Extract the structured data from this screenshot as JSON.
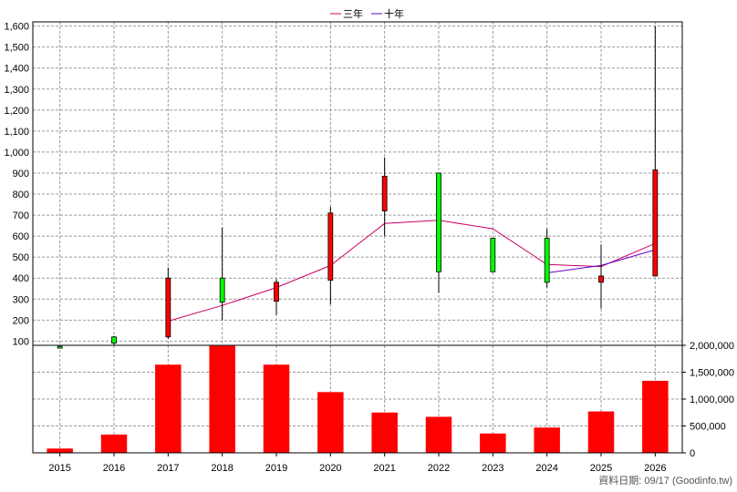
{
  "chart_data": [
    {
      "type": "candlestick",
      "legend": {
        "placement": "top-center",
        "items": [
          {
            "label": "三年",
            "color": "#cc0066"
          },
          {
            "label": "十年",
            "color": "#6600cc"
          }
        ]
      },
      "grid": true,
      "ylim": [
        80,
        1620
      ],
      "y_ticks": [
        "100",
        "200",
        "300",
        "400",
        "500",
        "600",
        "700",
        "800",
        "900",
        "1,000",
        "1,100",
        "1,200",
        "1,300",
        "1,400",
        "1,500",
        "1,600"
      ],
      "categories": [
        "2015",
        "2016",
        "2017",
        "2018",
        "2019",
        "2020",
        "2021",
        "2022",
        "2023",
        "2024",
        "2025",
        "2026"
      ],
      "candles": [
        {
          "open": 75,
          "close": 70,
          "high": 77,
          "low": 68
        },
        {
          "open": 120,
          "close": 90,
          "high": 125,
          "low": 80
        },
        {
          "open": 120,
          "close": 400,
          "high": 450,
          "low": 110
        },
        {
          "open": 400,
          "close": 285,
          "high": 640,
          "low": 200
        },
        {
          "open": 290,
          "close": 380,
          "high": 395,
          "low": 225
        },
        {
          "open": 390,
          "close": 710,
          "high": 740,
          "low": 275
        },
        {
          "open": 720,
          "close": 885,
          "high": 975,
          "low": 600
        },
        {
          "open": 900,
          "close": 430,
          "high": 900,
          "low": 330
        },
        {
          "open": 590,
          "close": 430,
          "high": 590,
          "low": 430
        },
        {
          "open": 590,
          "close": 380,
          "high": 635,
          "low": 355
        },
        {
          "open": 380,
          "close": 410,
          "high": 560,
          "low": 255
        },
        {
          "open": 410,
          "close": 915,
          "high": 1600,
          "low": 410
        }
      ],
      "candle_colors": {
        "up": "#ff0000",
        "down": "#00ff00"
      },
      "lines": [
        {
          "name": "三年",
          "color": "#cc0066",
          "start_index": 2,
          "values": [
            195,
            270,
            355,
            460,
            660,
            675,
            635,
            465,
            455,
            565
          ]
        },
        {
          "name": "十年",
          "color": "#6600cc",
          "start_index": 9,
          "values": [
            425,
            460,
            535
          ]
        }
      ]
    },
    {
      "type": "bar",
      "categories": [
        "2015",
        "2016",
        "2017",
        "2018",
        "2019",
        "2020",
        "2021",
        "2022",
        "2023",
        "2024",
        "2025",
        "2026"
      ],
      "values": [
        80000,
        340000,
        1640000,
        1990000,
        1640000,
        1130000,
        750000,
        670000,
        360000,
        470000,
        770000,
        1340000
      ],
      "color": "#ff0000",
      "ylim": [
        0,
        2000000
      ],
      "y_ticks": [
        "0",
        "500,000",
        "1,000,000",
        "1,500,000",
        "2,000,000"
      ],
      "grid": true
    }
  ],
  "footer": {
    "text": "資料日期: 09/17  (Goodinfo.tw)"
  }
}
